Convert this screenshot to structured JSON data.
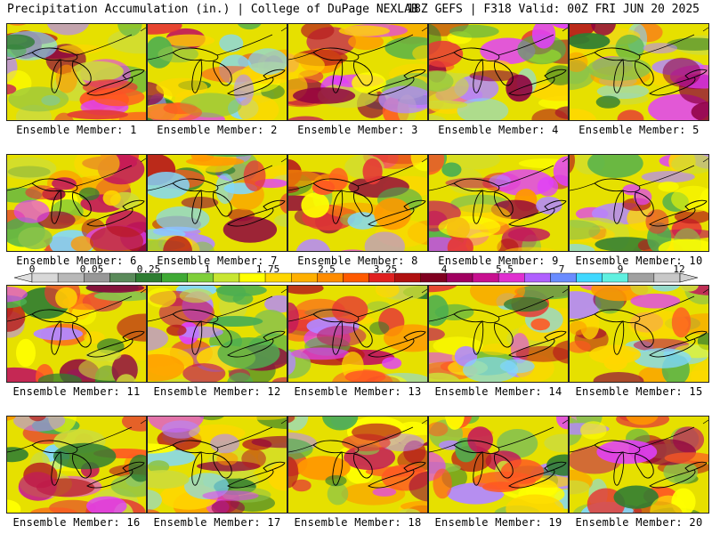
{
  "header": {
    "left": "Precipitation Accumulation (in.) | College of DuPage NEXLAB",
    "right": "18Z GEFS | F318 Valid: 00Z FRI JUN 20 2025"
  },
  "members": [
    "Ensemble Member: 1",
    "Ensemble Member: 2",
    "Ensemble Member: 3",
    "Ensemble Member: 4",
    "Ensemble Member: 5",
    "Ensemble Member: 6",
    "Ensemble Member: 7",
    "Ensemble Member: 8",
    "Ensemble Member: 9",
    "Ensemble Member: 10",
    "Ensemble Member: 11",
    "Ensemble Member: 12",
    "Ensemble Member: 13",
    "Ensemble Member: 14",
    "Ensemble Member: 15",
    "Ensemble Member: 16",
    "Ensemble Member: 17",
    "Ensemble Member: 18",
    "Ensemble Member: 19",
    "Ensemble Member: 20"
  ],
  "colorbar": {
    "ticks": [
      "0",
      "0.05",
      "0.25",
      "1",
      "1.75",
      "2.5",
      "3.25",
      "4",
      "5.5",
      "7",
      "9",
      "12"
    ],
    "colors": [
      "#d8d8d8",
      "#b8b8b8",
      "#989898",
      "#5a8a5a",
      "#2e7d32",
      "#3faa35",
      "#7fcf3a",
      "#c8e632",
      "#ffff00",
      "#ffd700",
      "#ffb000",
      "#ff8c00",
      "#ff5a00",
      "#e02020",
      "#b01010",
      "#800020",
      "#a00060",
      "#c81090",
      "#e030d0",
      "#b060ff",
      "#6a8cff",
      "#40d8ff",
      "#60f0e0",
      "#a0a0a0",
      "#c8c8c8"
    ]
  }
}
